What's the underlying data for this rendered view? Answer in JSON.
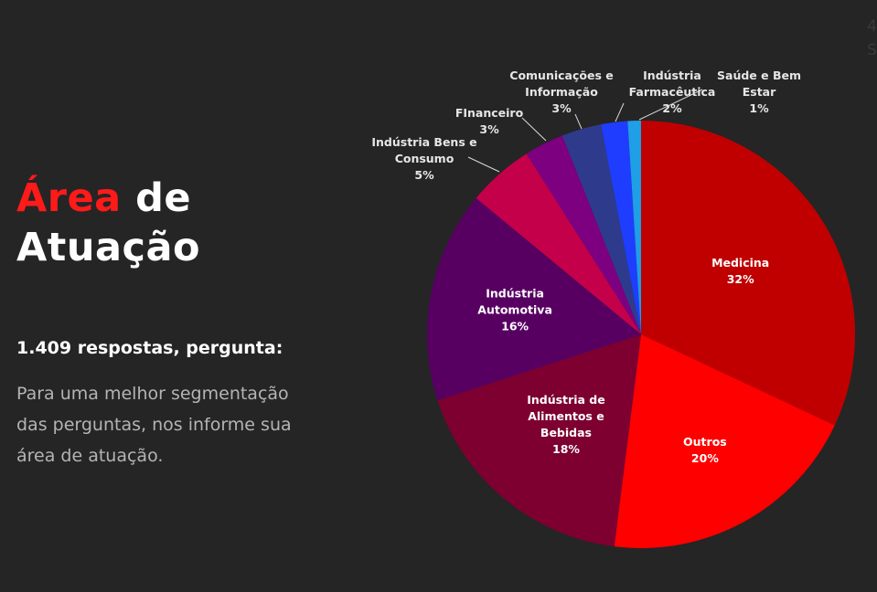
{
  "slide": {
    "title_accent": "Área",
    "title_rest_1": "de",
    "title_rest_2": "Atuação",
    "subtitle": "1.409 respostas, pergunta:",
    "description": "Para uma melhor segmentação das perguntas, nos informe sua área de atuação.",
    "corner_text_1": "4",
    "corner_text_2": "S"
  },
  "chart_data": {
    "type": "pie",
    "title": "",
    "start_angle_deg": 0,
    "direction": "clockwise",
    "slices": [
      {
        "label_lines": [
          "Medicina"
        ],
        "value": 32,
        "value_label": "32%",
        "color": "#c00000",
        "label_pos": "inside"
      },
      {
        "label_lines": [
          "Outros"
        ],
        "value": 20,
        "value_label": "20%",
        "color": "#ff0000",
        "label_pos": "inside"
      },
      {
        "label_lines": [
          "Indústria de",
          "Alimentos e",
          "Bebidas"
        ],
        "value": 18,
        "value_label": "18%",
        "color": "#7d0030",
        "label_pos": "inside"
      },
      {
        "label_lines": [
          "Indústria",
          "Automotiva"
        ],
        "value": 16,
        "value_label": "16%",
        "color": "#570062",
        "label_pos": "inside"
      },
      {
        "label_lines": [
          "Indústria Bens e",
          "Consumo"
        ],
        "value": 5,
        "value_label": "5%",
        "color": "#c5004b",
        "label_pos": "outside"
      },
      {
        "label_lines": [
          "FInanceiro"
        ],
        "value": 3,
        "value_label": "3%",
        "color": "#7c0080",
        "label_pos": "outside"
      },
      {
        "label_lines": [
          "Comunicações e",
          "Informação"
        ],
        "value": 3,
        "value_label": "3%",
        "color": "#2e3b8c",
        "label_pos": "outside"
      },
      {
        "label_lines": [
          "Indústria",
          "Farmacêutica"
        ],
        "value": 2,
        "value_label": "2%",
        "color": "#1f3dff",
        "label_pos": "outside"
      },
      {
        "label_lines": [
          "Saúde e Bem",
          "Estar"
        ],
        "value": 1,
        "value_label": "1%",
        "color": "#1e9fe6",
        "label_pos": "outside"
      }
    ]
  }
}
